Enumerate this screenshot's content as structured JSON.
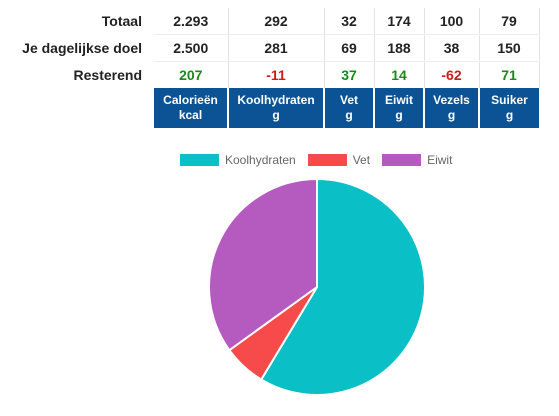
{
  "rows": {
    "total": {
      "label": "Totaal",
      "values": [
        {
          "text": "2.293",
          "status": ""
        },
        {
          "text": "292",
          "status": ""
        },
        {
          "text": "32",
          "status": ""
        },
        {
          "text": "174",
          "status": ""
        },
        {
          "text": "100",
          "status": ""
        },
        {
          "text": "79",
          "status": ""
        }
      ]
    },
    "goal": {
      "label": "Je dagelijkse doel",
      "values": [
        {
          "text": "2.500",
          "status": ""
        },
        {
          "text": "281",
          "status": ""
        },
        {
          "text": "69",
          "status": ""
        },
        {
          "text": "188",
          "status": ""
        },
        {
          "text": "38",
          "status": ""
        },
        {
          "text": "150",
          "status": ""
        }
      ]
    },
    "remaining": {
      "label": "Resterend",
      "values": [
        {
          "text": "207",
          "status": "pos"
        },
        {
          "text": "-11",
          "status": "neg"
        },
        {
          "text": "37",
          "status": "pos"
        },
        {
          "text": "14",
          "status": "pos"
        },
        {
          "text": "-62",
          "status": "neg"
        },
        {
          "text": "71",
          "status": "pos"
        }
      ]
    }
  },
  "headers": [
    {
      "name": "Calorieën",
      "unit": "kcal"
    },
    {
      "name": "Koolhydraten",
      "unit": "g"
    },
    {
      "name": "Vet",
      "unit": "g"
    },
    {
      "name": "Eiwit",
      "unit": "g"
    },
    {
      "name": "Vezels",
      "unit": "g"
    },
    {
      "name": "Suiker",
      "unit": "g"
    }
  ],
  "colors": {
    "header_bg": "#0b5394",
    "positive": "#1a8a1a",
    "negative": "#d11a1a"
  },
  "chart_data": {
    "type": "pie",
    "title": "",
    "legend_position": "top",
    "series": [
      {
        "name": "Koolhydraten",
        "value": 292,
        "color": "#0bbfc6"
      },
      {
        "name": "Vet",
        "value": 32,
        "color": "#f74a4a"
      },
      {
        "name": "Eiwit",
        "value": 174,
        "color": "#b55bc0"
      }
    ]
  }
}
